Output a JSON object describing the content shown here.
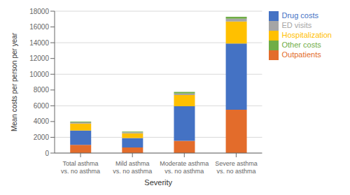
{
  "chart_data": {
    "type": "bar",
    "stacked": true,
    "categories": [
      "Total asthma\nvs. no asthma",
      "Mild asthma\nvs. no asthma",
      "Moderate asthma\nvs. no asthma",
      "Severe asthma\nvs. no asthma"
    ],
    "series": [
      {
        "name": "Outpatients",
        "color": "#E36C2B",
        "values": [
          1050,
          700,
          1550,
          5500
        ]
      },
      {
        "name": "Drug costs",
        "color": "#4472C4",
        "values": [
          1800,
          1200,
          4400,
          8400
        ]
      },
      {
        "name": "Hospitalization",
        "color": "#FFC000",
        "values": [
          900,
          600,
          1400,
          2800
        ]
      },
      {
        "name": "ED visits",
        "color": "#A5A5A5",
        "values": [
          150,
          130,
          200,
          350
        ]
      },
      {
        "name": "Other costs",
        "color": "#70AD47",
        "values": [
          100,
          100,
          200,
          250
        ]
      }
    ],
    "ylim": [
      0,
      18000
    ],
    "yticks": [
      0,
      2000,
      4000,
      6000,
      8000,
      10000,
      12000,
      14000,
      16000,
      18000
    ],
    "ylabel": "Mean costs per person per year",
    "xlabel": "Severity",
    "grid": true,
    "legend": "right"
  }
}
